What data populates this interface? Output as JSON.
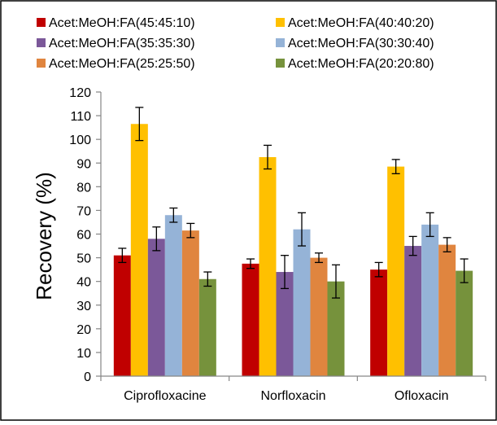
{
  "chart_data": {
    "type": "bar",
    "title": "",
    "xlabel": "",
    "ylabel": "Recovery (%)",
    "ylim": [
      0,
      120
    ],
    "yticks": [
      0,
      10,
      20,
      30,
      40,
      50,
      60,
      70,
      80,
      90,
      100,
      110,
      120
    ],
    "grid": false,
    "legend_position": "top",
    "categories": [
      "Ciprofloxacine",
      "Norfloxacin",
      "Ofloxacin"
    ],
    "series": [
      {
        "name": "Acet:MeOH:FA(45:45:10)",
        "color": "#c00000",
        "values": [
          51,
          47.5,
          45
        ],
        "errors": [
          3,
          2,
          3
        ]
      },
      {
        "name": "Acet:MeOH:FA(40:40:20)",
        "color": "#ffc000",
        "values": [
          106.5,
          92.5,
          88.5
        ],
        "errors": [
          7,
          5,
          3
        ]
      },
      {
        "name": "Acet:MeOH:FA(35:35:30)",
        "color": "#7b5899",
        "values": [
          58,
          44,
          55
        ],
        "errors": [
          5,
          7,
          4
        ]
      },
      {
        "name": "Acet:MeOH:FA(30:30:40)",
        "color": "#95b3d7",
        "values": [
          68,
          62,
          64
        ],
        "errors": [
          3,
          7,
          5
        ]
      },
      {
        "name": "Acet:MeOH:FA(25:25:50)",
        "color": "#e0853f",
        "values": [
          61.5,
          50,
          55.5
        ],
        "errors": [
          3,
          2,
          3
        ]
      },
      {
        "name": "Acet:MeOH:FA(20:20:80)",
        "color": "#76923c",
        "values": [
          41,
          40,
          44.5
        ],
        "errors": [
          3,
          7,
          5
        ]
      }
    ]
  }
}
